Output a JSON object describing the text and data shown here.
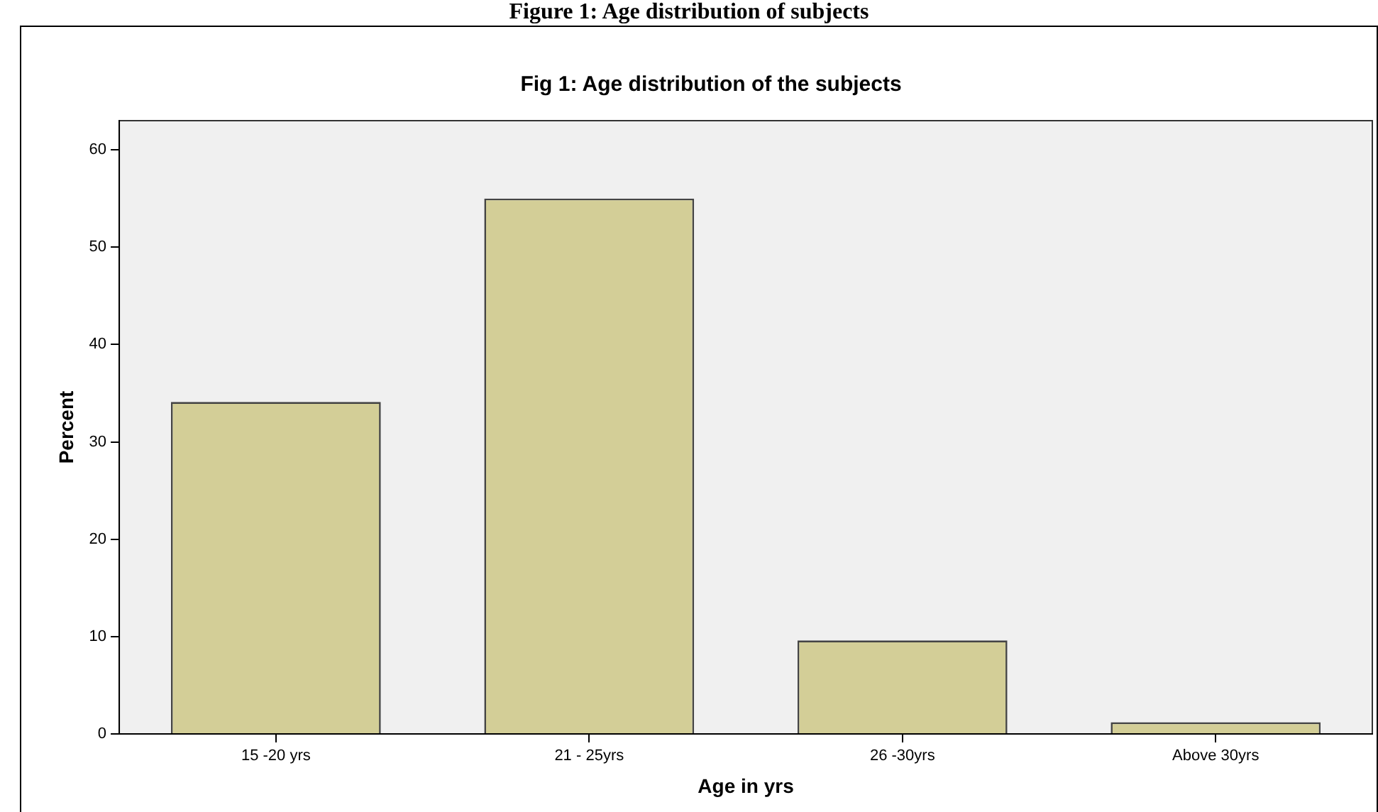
{
  "chart_data": {
    "type": "bar",
    "title": "Fig 1: Age distribution of the subjects",
    "xlabel": "Age in yrs",
    "ylabel": "Percent",
    "annotations": [
      "Figure 1: Age distribution of subjects"
    ],
    "categories": [
      "15 -20 yrs",
      "21 - 25yrs",
      "26 -30yrs",
      "Above 30yrs"
    ],
    "values": [
      34.1,
      55,
      9.6,
      1.2
    ],
    "color": "#d3ce97",
    "ylim": [
      0,
      63
    ],
    "yticks": [
      0,
      10,
      20,
      30,
      40,
      50,
      60
    ],
    "grid": false,
    "legend": false
  }
}
